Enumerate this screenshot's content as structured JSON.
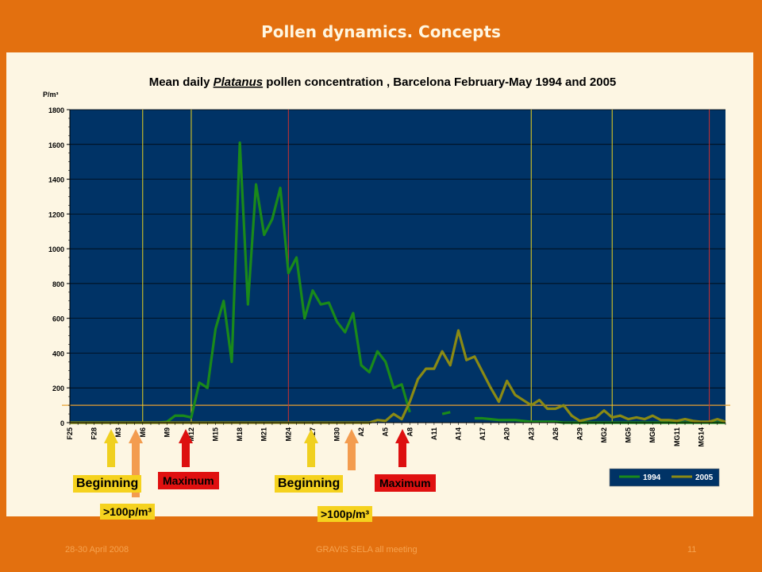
{
  "slide": {
    "title": "Pollen dynamics. Concepts",
    "footer_left": "28-30 April 2008",
    "footer_center": "GRAVIS SELA all meeting",
    "footer_right": "11"
  },
  "chart_data": {
    "type": "line",
    "title_pre": "Mean daily ",
    "title_italic": "Platanus",
    "title_post": " pollen concentration , Barcelona February-May 1994 and 2005",
    "ylabel": "P/m³",
    "ylim": [
      0,
      1800
    ],
    "yticks": [
      0,
      200,
      400,
      600,
      800,
      1000,
      1200,
      1400,
      1600,
      1800
    ],
    "x_count": 82,
    "x_tick_labels": [
      "F25",
      "F28",
      "M3",
      "M6",
      "M9",
      "M12",
      "M15",
      "M18",
      "M21",
      "M24",
      "M27",
      "M30",
      "A2",
      "A5",
      "A8",
      "A11",
      "A14",
      "A17",
      "A20",
      "A23",
      "A26",
      "A29",
      "MG2",
      "MG5",
      "MG8",
      "MG11",
      "MG14"
    ],
    "grid": true,
    "legend_position": "bottom-right",
    "threshold": 100,
    "colors": {
      "plot_bg": "#003366",
      "series_1994": "#1a8a1a",
      "series_2005": "#8b8a14",
      "vline_begin": "#e8d21e",
      "vline_max": "#cc3030",
      "hline": "#e8a030"
    },
    "vlines": [
      {
        "x": 9,
        "kind": "begin"
      },
      {
        "x": 15,
        "kind": "begin"
      },
      {
        "x": 27,
        "kind": "max"
      },
      {
        "x": 57,
        "kind": "begin"
      },
      {
        "x": 67,
        "kind": "begin"
      },
      {
        "x": 79,
        "kind": "max"
      }
    ],
    "series": [
      {
        "name": "1994",
        "values": [
          0,
          0,
          0,
          0,
          0,
          0,
          0,
          0,
          0,
          0,
          0,
          0,
          5,
          40,
          40,
          30,
          230,
          200,
          540,
          700,
          350,
          1610,
          680,
          1370,
          1080,
          1170,
          1350,
          860,
          950,
          600,
          760,
          680,
          690,
          580,
          520,
          630,
          330,
          290,
          410,
          350,
          200,
          220,
          60,
          null,
          null,
          null,
          50,
          60,
          null,
          null,
          25,
          25,
          20,
          15,
          15,
          15,
          10,
          5,
          5,
          5,
          5,
          0,
          0,
          0,
          0,
          0,
          0,
          0,
          0,
          0,
          0,
          0,
          0,
          0,
          0,
          0,
          0,
          0,
          0,
          0,
          0,
          0
        ]
      },
      {
        "name": "2005",
        "values": [
          0,
          0,
          0,
          0,
          0,
          0,
          0,
          0,
          0,
          0,
          0,
          0,
          0,
          0,
          0,
          0,
          0,
          0,
          0,
          0,
          0,
          0,
          0,
          0,
          0,
          0,
          0,
          0,
          0,
          0,
          0,
          0,
          0,
          0,
          0,
          0,
          0,
          0,
          15,
          10,
          50,
          20,
          120,
          250,
          310,
          310,
          410,
          330,
          530,
          360,
          380,
          290,
          200,
          120,
          240,
          160,
          130,
          100,
          130,
          80,
          80,
          100,
          40,
          10,
          20,
          30,
          70,
          30,
          40,
          20,
          30,
          20,
          40,
          15,
          15,
          10,
          20,
          10,
          5,
          5,
          20,
          5
        ]
      }
    ]
  },
  "annotations": {
    "beginning_1": "Beginning",
    "maximum_1": "Maximum",
    "threshold_1": ">100p/m³",
    "beginning_2": "Beginning",
    "maximum_2": "Maximum",
    "threshold_2": ">100p/m³"
  }
}
